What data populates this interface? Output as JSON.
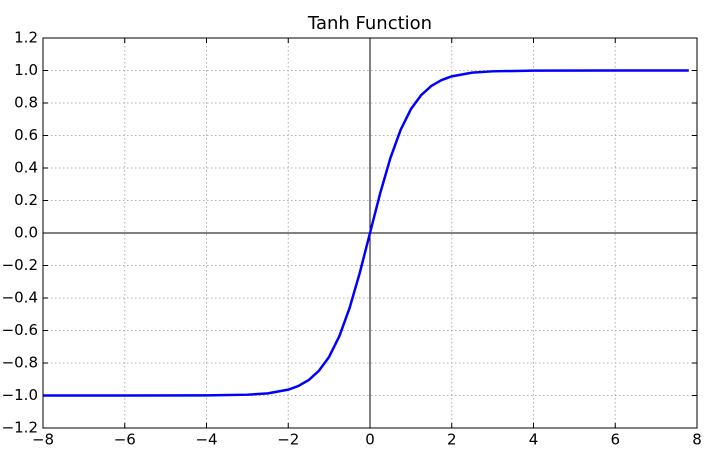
{
  "chart_data": {
    "type": "line",
    "title": "Tanh Function",
    "x": [
      -8,
      -6,
      -4,
      -3,
      -2.5,
      -2,
      -1.75,
      -1.5,
      -1.25,
      -1,
      -0.75,
      -0.5,
      -0.25,
      0,
      0.25,
      0.5,
      0.75,
      1,
      1.25,
      1.5,
      1.75,
      2,
      2.5,
      3,
      4,
      6,
      7.8
    ],
    "series": [
      {
        "color": "#0000ff",
        "values": [
          -1.0,
          -1.0,
          -0.999,
          -0.995,
          -0.987,
          -0.964,
          -0.941,
          -0.905,
          -0.848,
          -0.762,
          -0.635,
          -0.462,
          -0.245,
          0,
          0.245,
          0.462,
          0.635,
          0.762,
          0.848,
          0.905,
          0.941,
          0.964,
          0.987,
          0.995,
          0.999,
          1.0,
          1.0
        ]
      }
    ],
    "xlim": [
      -8,
      8
    ],
    "xticks": [
      {
        "value": -8,
        "label": "−8"
      },
      {
        "value": -6,
        "label": "−6"
      },
      {
        "value": -4,
        "label": "−4"
      },
      {
        "value": -2,
        "label": "−2"
      },
      0,
      2,
      4,
      6,
      8
    ],
    "ylim": [
      -1.2,
      1.2
    ],
    "yticks": [
      {
        "value": -1.2,
        "label": "−1.2"
      },
      {
        "value": -1,
        "label": "−1.0"
      },
      {
        "value": -0.8,
        "label": "−0.8"
      },
      {
        "value": -0.6,
        "label": "−0.6"
      },
      {
        "value": -0.4,
        "label": "−0.4"
      },
      {
        "value": -0.2,
        "label": "−0.2"
      },
      {
        "value": 0,
        "label": "0.0"
      },
      0.2,
      0.4,
      0.6,
      0.8,
      {
        "value": 1,
        "label": "1.0"
      },
      1.2
    ],
    "grid": true
  }
}
